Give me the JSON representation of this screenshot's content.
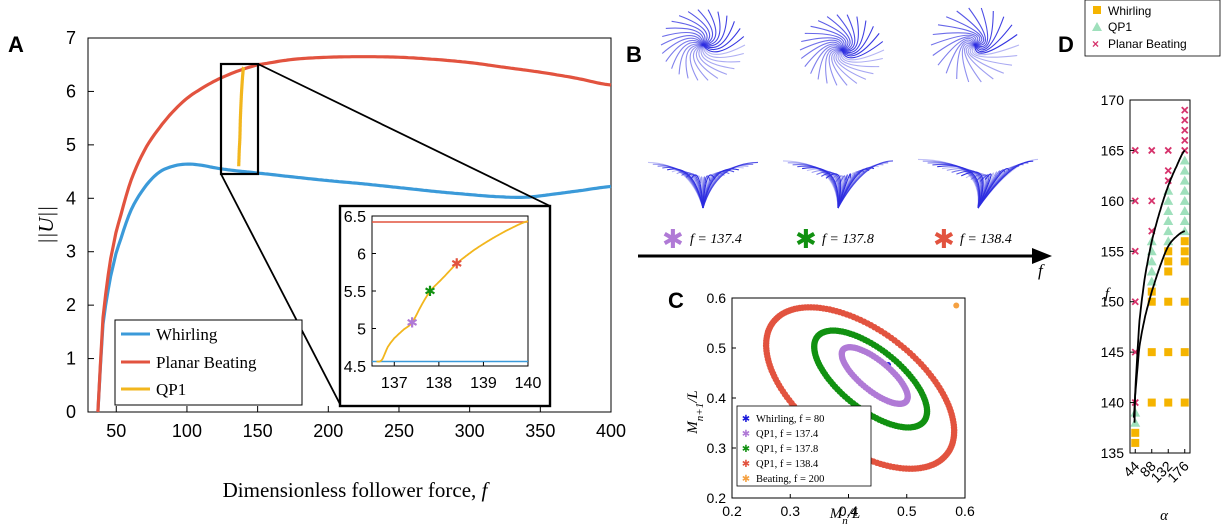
{
  "panel_letters": {
    "a": "A",
    "b": "B",
    "c": "C",
    "d": "D"
  },
  "colors": {
    "whirling": "#3b9ad9",
    "planar": "#e2533f",
    "qp1": "#f2b61d",
    "c_whirling": "#1a1adb",
    "c_qp1_137_4": "#b07ad6",
    "c_qp1_137_8": "#119111",
    "c_qp1_138_4": "#e2533f",
    "c_beating": "#f5a142",
    "d_whirling": "#f5b400",
    "d_qp1": "#9fe0bc",
    "d_planar": "#d6336c",
    "filament": "#2d2de0"
  },
  "panel_b": {
    "markers": [
      {
        "label": "f = 137.4",
        "color": "#b07ad6"
      },
      {
        "label": "f = 137.8",
        "color": "#119111"
      },
      {
        "label": "f = 138.4",
        "color": "#e2533f"
      }
    ],
    "arrow_label": "f"
  },
  "chart_data": [
    {
      "panel": "A",
      "type": "line",
      "xlabel": "Dimensionless follower force, f",
      "ylabel": "||U||",
      "xlim": [
        30,
        400
      ],
      "ylim": [
        0,
        7
      ],
      "xticks": [
        50,
        100,
        150,
        200,
        250,
        300,
        350,
        400
      ],
      "yticks": [
        0,
        1,
        2,
        3,
        4,
        5,
        6,
        7
      ],
      "legend_position": "bottom-left",
      "series": [
        {
          "name": "Whirling",
          "x": [
            37,
            40,
            45,
            50,
            60,
            70,
            80,
            90,
            100,
            110,
            120,
            130,
            140,
            150,
            175,
            200,
            225,
            250,
            275,
            300,
            320,
            340,
            360,
            380,
            400
          ],
          "y": [
            0,
            1.5,
            2.4,
            3.0,
            3.75,
            4.2,
            4.48,
            4.6,
            4.64,
            4.62,
            4.57,
            4.53,
            4.5,
            4.47,
            4.4,
            4.33,
            4.27,
            4.2,
            4.13,
            4.07,
            4.03,
            4.02,
            4.08,
            4.15,
            4.22
          ]
        },
        {
          "name": "Planar Beating",
          "x": [
            37,
            40,
            45,
            50,
            60,
            70,
            80,
            90,
            100,
            110,
            120,
            130,
            140,
            150,
            175,
            200,
            225,
            250,
            275,
            300,
            325,
            350,
            375,
            400
          ],
          "y": [
            0,
            1.6,
            2.7,
            3.4,
            4.3,
            4.9,
            5.3,
            5.62,
            5.87,
            6.05,
            6.2,
            6.32,
            6.42,
            6.5,
            6.6,
            6.64,
            6.65,
            6.64,
            6.6,
            6.54,
            6.45,
            6.36,
            6.25,
            6.12
          ]
        },
        {
          "name": "QP1",
          "x": [
            136.6,
            137,
            137.4,
            137.8,
            138.4,
            139,
            139.5,
            140
          ],
          "y": [
            4.6,
            4.9,
            5.1,
            5.5,
            5.87,
            6.14,
            6.32,
            6.45
          ]
        }
      ],
      "inset": {
        "xlim": [
          136.5,
          140
        ],
        "ylim": [
          4.5,
          6.5
        ],
        "xticks": [
          137,
          138,
          139,
          140
        ],
        "yticks": [
          4.5,
          5,
          5.5,
          6,
          6.5
        ],
        "planar_y": 6.42,
        "whirling_y": 4.56,
        "qp1_x": [
          136.6,
          136.72,
          136.85,
          137,
          137.2,
          137.4,
          137.6,
          137.8,
          138.1,
          138.4,
          138.8,
          139.2,
          139.6,
          140
        ],
        "qp1_y": [
          4.56,
          4.58,
          4.75,
          4.87,
          4.98,
          5.08,
          5.3,
          5.5,
          5.68,
          5.87,
          6.05,
          6.2,
          6.33,
          6.43
        ],
        "markers": [
          {
            "x": 137.4,
            "y": 5.08,
            "color": "#b07ad6"
          },
          {
            "x": 137.8,
            "y": 5.5,
            "color": "#119111"
          },
          {
            "x": 138.4,
            "y": 5.87,
            "color": "#e2533f"
          }
        ]
      }
    },
    {
      "panel": "C",
      "type": "scatter",
      "xlabel": "M_n/L",
      "ylabel": "M_{n+1}/L",
      "xlim": [
        0.2,
        0.6
      ],
      "ylim": [
        0.2,
        0.6
      ],
      "xticks": [
        0.2,
        0.3,
        0.4,
        0.5,
        0.6
      ],
      "yticks": [
        0.2,
        0.3,
        0.4,
        0.5,
        0.6
      ],
      "legend_position": "bottom-left",
      "series": [
        {
          "name": "Whirling, f = 80",
          "type": "point",
          "x": 0.468,
          "y": 0.466,
          "color": "#1a1adb"
        },
        {
          "name": "QP1, f = 137.4",
          "type": "loop",
          "center": [
            0.445,
            0.445
          ],
          "major": 0.075,
          "minor": 0.028,
          "angle": -45,
          "color": "#b07ad6"
        },
        {
          "name": "QP1, f = 137.8",
          "type": "loop",
          "center": [
            0.438,
            0.438
          ],
          "major": 0.125,
          "minor": 0.056,
          "angle": -45,
          "color": "#119111"
        },
        {
          "name": "QP1, f = 138.4",
          "type": "loop",
          "center": [
            0.42,
            0.42
          ],
          "major": 0.2,
          "minor": 0.11,
          "angle": -45,
          "color": "#e2533f"
        },
        {
          "name": "Beating, f = 200",
          "type": "point",
          "x": 0.585,
          "y": 0.585,
          "color": "#f5a142"
        }
      ]
    },
    {
      "panel": "D",
      "type": "scatter",
      "xlabel": "α",
      "ylabel": "f",
      "xlim": [
        30,
        190
      ],
      "ylim": [
        135,
        170
      ],
      "xticks": [
        44,
        88,
        132,
        176
      ],
      "yticks": [
        135,
        140,
        145,
        150,
        155,
        160,
        165,
        170
      ],
      "legend_position": "top",
      "series": [
        {
          "name": "Whirling",
          "marker": "square",
          "points": [
            [
              44,
              136
            ],
            [
              44,
              137
            ],
            [
              88,
              140
            ],
            [
              88,
              145
            ],
            [
              88,
              150
            ],
            [
              88,
              151
            ],
            [
              132,
              140
            ],
            [
              132,
              145
            ],
            [
              132,
              150
            ],
            [
              132,
              153
            ],
            [
              132,
              154
            ],
            [
              132,
              155
            ],
            [
              176,
              140
            ],
            [
              176,
              145
            ],
            [
              176,
              150
            ],
            [
              176,
              154
            ],
            [
              176,
              155
            ],
            [
              176,
              156
            ]
          ]
        },
        {
          "name": "QP1",
          "marker": "triangle",
          "points": [
            [
              44,
              138
            ],
            [
              44,
              139
            ],
            [
              88,
              152
            ],
            [
              88,
              153
            ],
            [
              88,
              154
            ],
            [
              88,
              155
            ],
            [
              88,
              156
            ],
            [
              132,
              156
            ],
            [
              132,
              157
            ],
            [
              132,
              158
            ],
            [
              132,
              159
            ],
            [
              132,
              160
            ],
            [
              132,
              161
            ],
            [
              176,
              157
            ],
            [
              176,
              158
            ],
            [
              176,
              159
            ],
            [
              176,
              160
            ],
            [
              176,
              161
            ],
            [
              176,
              162
            ],
            [
              176,
              163
            ],
            [
              176,
              164
            ]
          ]
        },
        {
          "name": "Planar Beating",
          "marker": "cross",
          "points": [
            [
              44,
              140
            ],
            [
              44,
              145
            ],
            [
              44,
              150
            ],
            [
              44,
              155
            ],
            [
              44,
              160
            ],
            [
              44,
              165
            ],
            [
              88,
              157
            ],
            [
              88,
              160
            ],
            [
              88,
              165
            ],
            [
              132,
              162
            ],
            [
              132,
              163
            ],
            [
              132,
              165
            ],
            [
              176,
              165
            ],
            [
              176,
              166
            ],
            [
              176,
              167
            ],
            [
              176,
              168
            ],
            [
              176,
              169
            ]
          ]
        }
      ],
      "boundaries": [
        {
          "x": [
            40,
            44,
            55,
            70,
            88,
            110,
            132,
            155,
            176
          ],
          "y": [
            138.5,
            141,
            145.5,
            148.5,
            151,
            153.5,
            155.5,
            156.5,
            157
          ]
        },
        {
          "x": [
            42,
            44,
            55,
            70,
            88,
            110,
            132,
            155,
            176
          ],
          "y": [
            138,
            141.5,
            148,
            152.5,
            156,
            159,
            161.5,
            163.5,
            165
          ]
        }
      ]
    }
  ]
}
